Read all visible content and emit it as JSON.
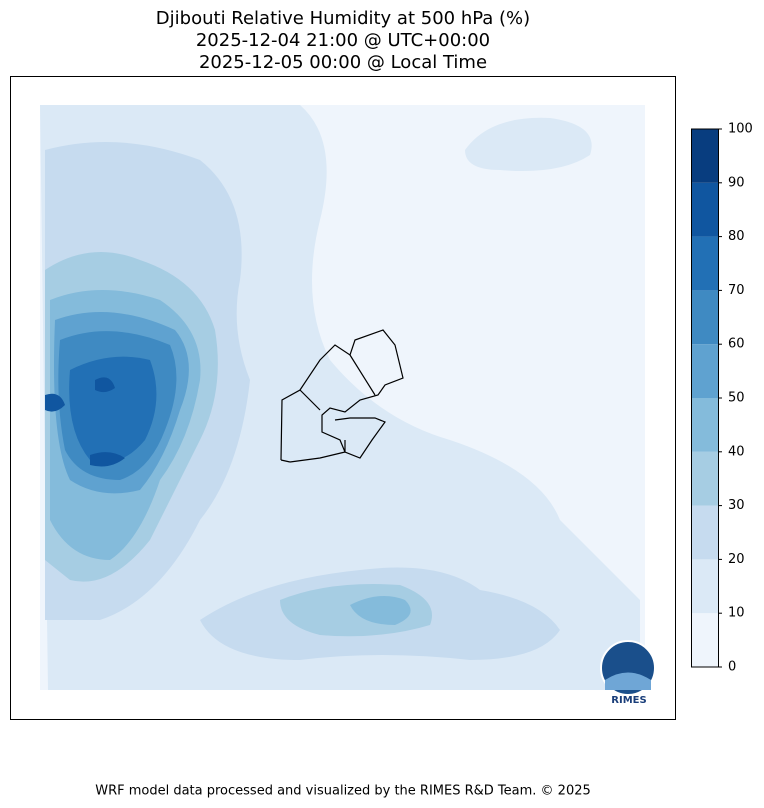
{
  "title": [
    "Djibouti Relative Humidity at 500 hPa (%)",
    "2025-12-04 21:00 @ UTC+00:00",
    "2025-12-05 00:00 @ Local Time"
  ],
  "colorbar": {
    "lim": [
      0,
      100
    ],
    "ticks": [
      0,
      10,
      20,
      30,
      40,
      50,
      60,
      70,
      80,
      90,
      100
    ],
    "colors": [
      "#eff5fc",
      "#dbe9f6",
      "#c6dbef",
      "#a6cde3",
      "#84bbdb",
      "#5fa2d0",
      "#3f8ac2",
      "#2270b5",
      "#1056a0",
      "#083d7f"
    ]
  },
  "logo": "RIMES",
  "footer": "WRF model data processed and visualized by the RIMES R&D Team. © 2025"
}
